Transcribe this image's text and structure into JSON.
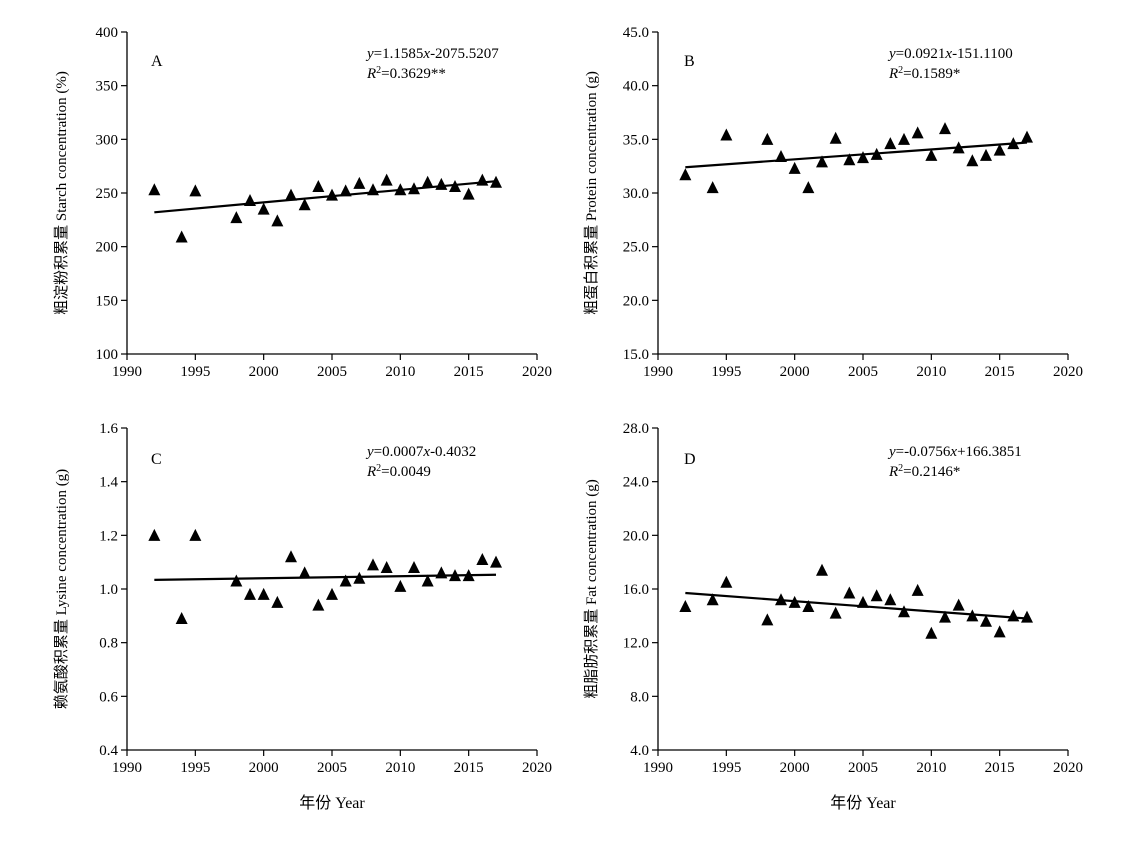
{
  "chart_data": [
    {
      "type": "scatter",
      "panel": "A",
      "ylabel": "粗淀粉积累量 Starch concentration (%)",
      "xlabel": "",
      "xlim": [
        1990,
        2020
      ],
      "ylim": [
        100,
        400
      ],
      "xticks": [
        1990,
        1995,
        2000,
        2005,
        2010,
        2015,
        2020
      ],
      "yticks": [
        "100",
        "150",
        "200",
        "250",
        "300",
        "350",
        "400"
      ],
      "equation": {
        "y": "y",
        "eq": "=1.1585",
        "x": "x",
        "rest": "-2075.5207"
      },
      "r2": {
        "label": "R",
        "value": "=0.3629**"
      },
      "trend": {
        "x": [
          1992,
          2017
        ],
        "y": [
          232,
          261
        ]
      },
      "x": [
        1992,
        1994,
        1995,
        1998,
        1999,
        2000,
        2001,
        2002,
        2003,
        2004,
        2005,
        2006,
        2007,
        2008,
        2009,
        2010,
        2011,
        2012,
        2013,
        2014,
        2015,
        2016,
        2017
      ],
      "y": [
        253,
        209,
        252,
        227,
        243,
        235,
        224,
        248,
        239,
        256,
        248,
        252,
        259,
        253,
        262,
        253,
        254,
        260,
        258,
        256,
        249,
        262,
        260
      ]
    },
    {
      "type": "scatter",
      "panel": "B",
      "ylabel": "粗蛋白积累量 Protein concentration (g)",
      "xlabel": "",
      "xlim": [
        1990,
        2020
      ],
      "ylim": [
        15,
        45
      ],
      "xticks": [
        1990,
        1995,
        2000,
        2005,
        2010,
        2015,
        2020
      ],
      "yticks": [
        "15.0",
        "20.0",
        "25.0",
        "30.0",
        "35.0",
        "40.0",
        "45.0"
      ],
      "equation": {
        "y": "y",
        "eq": "=0.0921",
        "x": "x",
        "rest": "-151.1100"
      },
      "r2": {
        "label": "R",
        "value": "=0.1589*"
      },
      "trend": {
        "x": [
          1992,
          2017
        ],
        "y": [
          32.4,
          34.7
        ]
      },
      "x": [
        1992,
        1994,
        1995,
        1998,
        1999,
        2000,
        2001,
        2002,
        2003,
        2004,
        2005,
        2006,
        2007,
        2008,
        2009,
        2010,
        2011,
        2012,
        2013,
        2014,
        2015,
        2016,
        2017
      ],
      "y": [
        31.7,
        30.5,
        35.4,
        35.0,
        33.4,
        32.3,
        30.5,
        32.9,
        35.1,
        33.1,
        33.3,
        33.6,
        34.6,
        35.0,
        35.6,
        33.5,
        36.0,
        34.2,
        33.0,
        33.5,
        34.0,
        34.6,
        35.2
      ]
    },
    {
      "type": "scatter",
      "panel": "C",
      "ylabel": "赖氨酸积累量 Lysine concentration (g)",
      "xlabel": "年份 Year",
      "xlim": [
        1990,
        2020
      ],
      "ylim": [
        0.4,
        1.6
      ],
      "xticks": [
        1990,
        1995,
        2000,
        2005,
        2010,
        2015,
        2020
      ],
      "yticks": [
        "0.4",
        "0.6",
        "0.8",
        "1.0",
        "1.2",
        "1.4",
        "1.6"
      ],
      "equation": {
        "y": "y",
        "eq": "=0.0007",
        "x": "x",
        "rest": "-0.4032"
      },
      "r2": {
        "label": "R",
        "value": "=0.0049"
      },
      "trend": {
        "x": [
          1992,
          2017
        ],
        "y": [
          1.034,
          1.053
        ]
      },
      "x": [
        1992,
        1994,
        1995,
        1998,
        1999,
        2000,
        2001,
        2002,
        2003,
        2004,
        2005,
        2006,
        2007,
        2008,
        2009,
        2010,
        2011,
        2012,
        2013,
        2014,
        2015,
        2016,
        2017
      ],
      "y": [
        1.2,
        0.89,
        1.2,
        1.03,
        0.98,
        0.98,
        0.95,
        1.12,
        1.06,
        0.94,
        0.98,
        1.03,
        1.04,
        1.09,
        1.08,
        1.01,
        1.08,
        1.03,
        1.06,
        1.05,
        1.05,
        1.11,
        1.1
      ]
    },
    {
      "type": "scatter",
      "panel": "D",
      "ylabel": "粗脂肪积累量 Fat concentration (g)",
      "xlabel": "年份 Year",
      "xlim": [
        1990,
        2020
      ],
      "ylim": [
        4,
        28
      ],
      "xticks": [
        1990,
        1995,
        2000,
        2005,
        2010,
        2015,
        2020
      ],
      "yticks": [
        "4.0",
        "8.0",
        "12.0",
        "16.0",
        "20.0",
        "24.0",
        "28.0"
      ],
      "equation": {
        "y": "y",
        "eq": "=-0.0756",
        "x": "x",
        "rest": "+166.3851"
      },
      "r2": {
        "label": "R",
        "value": "=0.2146*"
      },
      "trend": {
        "x": [
          1992,
          2017
        ],
        "y": [
          15.7,
          13.8
        ]
      },
      "x": [
        1992,
        1994,
        1995,
        1998,
        1999,
        2000,
        2001,
        2002,
        2003,
        2004,
        2005,
        2006,
        2007,
        2008,
        2009,
        2010,
        2011,
        2012,
        2013,
        2014,
        2015,
        2016,
        2017
      ],
      "y": [
        14.7,
        15.2,
        16.5,
        13.7,
        15.2,
        15.0,
        14.7,
        17.4,
        14.2,
        15.7,
        15.0,
        15.5,
        15.2,
        14.3,
        15.9,
        12.7,
        13.9,
        14.8,
        14.0,
        13.6,
        12.8,
        14.0,
        13.9
      ]
    }
  ]
}
